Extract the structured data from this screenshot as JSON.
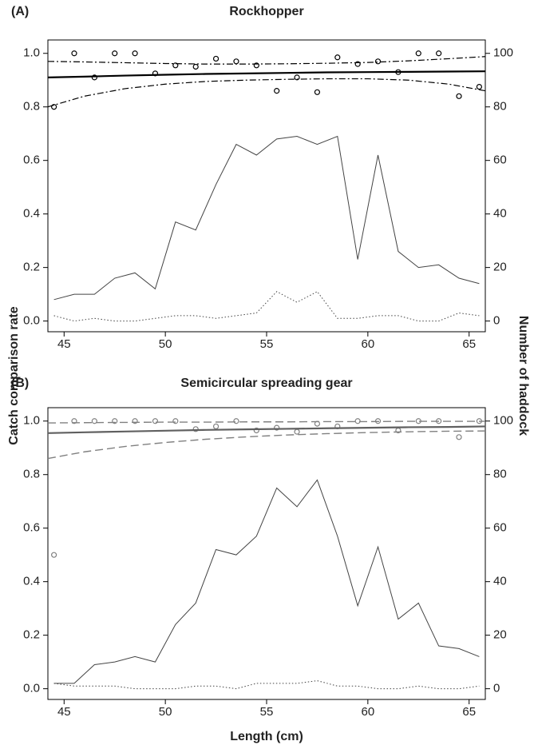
{
  "chart_data": [
    {
      "type": "line",
      "label": "(A)",
      "title": "Rockhopper",
      "y_label": "Catch comparison rate",
      "y2_label": "Number of haddock",
      "xlim": [
        44.2,
        65.8
      ],
      "xticks": [
        45,
        50,
        55,
        60,
        65
      ],
      "ylim": [
        -0.04,
        1.05
      ],
      "yticks": [
        {
          "value": 0,
          "label": "0.0"
        },
        0.2,
        0.4,
        0.6,
        0.8,
        {
          "value": 1,
          "label": "1.0"
        }
      ],
      "y2lim": [
        -4,
        105
      ],
      "y2ticks": [
        0,
        20,
        40,
        60,
        80,
        100
      ],
      "series": [
        {
          "style": "points",
          "color": "#000000",
          "x": [
            44.5,
            45.5,
            46.5,
            47.5,
            48.5,
            49.5,
            50.5,
            51.5,
            52.5,
            53.5,
            54.5,
            55.5,
            56.5,
            57.5,
            58.5,
            59.5,
            60.5,
            61.5,
            62.5,
            63.5,
            64.5,
            65.5
          ],
          "values": [
            0.8,
            1.0,
            0.91,
            1.0,
            1.0,
            0.925,
            0.955,
            0.95,
            0.98,
            0.97,
            0.955,
            0.86,
            0.91,
            0.855,
            0.985,
            0.96,
            0.97,
            0.93,
            1.0,
            1.0,
            0.84,
            0.875
          ]
        },
        {
          "style": "solid-thick",
          "color": "#000000",
          "x": [
            44.2,
            46,
            48,
            50,
            52,
            54,
            56,
            58,
            60,
            62,
            64,
            65.8
          ],
          "values": [
            0.91,
            0.913,
            0.917,
            0.92,
            0.923,
            0.925,
            0.927,
            0.929,
            0.93,
            0.931,
            0.932,
            0.933
          ]
        },
        {
          "style": "dashdot",
          "color": "#000000",
          "x": [
            44.2,
            46,
            48,
            50,
            52,
            54,
            56,
            58,
            60,
            62,
            64,
            65.8
          ],
          "values": [
            0.97,
            0.968,
            0.965,
            0.962,
            0.96,
            0.96,
            0.961,
            0.963,
            0.966,
            0.972,
            0.98,
            0.988
          ]
        },
        {
          "style": "dashdot",
          "color": "#000000",
          "x": [
            44.2,
            46,
            48,
            50,
            52,
            54,
            56,
            58,
            60,
            62,
            64,
            65.8
          ],
          "values": [
            0.8,
            0.84,
            0.868,
            0.885,
            0.895,
            0.9,
            0.903,
            0.905,
            0.905,
            0.9,
            0.885,
            0.86
          ]
        },
        {
          "style": "solid",
          "color": "#444444",
          "axis": "y2",
          "x": [
            44.5,
            45.5,
            46.5,
            47.5,
            48.5,
            49.5,
            50.5,
            51.5,
            52.5,
            53.5,
            54.5,
            55.5,
            56.5,
            57.5,
            58.5,
            59.5,
            60.5,
            61.5,
            62.5,
            63.5,
            64.5,
            65.5
          ],
          "values": [
            8,
            10,
            10,
            16,
            18,
            12,
            37,
            34,
            51,
            66,
            62,
            68,
            69,
            66,
            69,
            23,
            62,
            26,
            20,
            21,
            16,
            14
          ]
        },
        {
          "style": "dotted",
          "color": "#444444",
          "axis": "y2",
          "x": [
            44.5,
            45.5,
            46.5,
            47.5,
            48.5,
            49.5,
            50.5,
            51.5,
            52.5,
            53.5,
            54.5,
            55.5,
            56.5,
            57.5,
            58.5,
            59.5,
            60.5,
            61.5,
            62.5,
            63.5,
            64.5,
            65.5
          ],
          "values": [
            2,
            0,
            1,
            0,
            0,
            1,
            2,
            2,
            1,
            2,
            3,
            11,
            7,
            11,
            1,
            1,
            2,
            2,
            0,
            0,
            3,
            2
          ]
        }
      ]
    },
    {
      "type": "line",
      "label": "(B)",
      "title": "Semicircular spreading gear",
      "x_label": "Length (cm)",
      "xlim": [
        44.2,
        65.8
      ],
      "xticks": [
        45,
        50,
        55,
        60,
        65
      ],
      "ylim": [
        -0.04,
        1.05
      ],
      "yticks": [
        {
          "value": 0,
          "label": "0.0"
        },
        0.2,
        0.4,
        0.6,
        0.8,
        {
          "value": 1,
          "label": "1.0"
        }
      ],
      "y2lim": [
        -4,
        105
      ],
      "y2ticks": [
        0,
        20,
        40,
        60,
        80,
        100
      ],
      "series": [
        {
          "style": "points",
          "color": "#808080",
          "x": [
            44.5,
            45.5,
            46.5,
            47.5,
            48.5,
            49.5,
            50.5,
            51.5,
            52.5,
            53.5,
            54.5,
            55.5,
            56.5,
            57.5,
            58.5,
            59.5,
            60.5,
            61.5,
            62.5,
            63.5,
            64.5,
            65.5
          ],
          "values": [
            0.5,
            1.0,
            1.0,
            1.0,
            1.0,
            1.0,
            1.0,
            0.97,
            0.98,
            1.0,
            0.965,
            0.975,
            0.96,
            0.99,
            0.98,
            1.0,
            1.0,
            0.965,
            1.0,
            1.0,
            0.94,
            1.0
          ]
        },
        {
          "style": "solid-thick",
          "color": "#606060",
          "x": [
            44.2,
            46,
            48,
            50,
            52,
            54,
            56,
            58,
            60,
            62,
            64,
            65.8
          ],
          "values": [
            0.955,
            0.958,
            0.961,
            0.964,
            0.967,
            0.969,
            0.971,
            0.973,
            0.975,
            0.977,
            0.978,
            0.98
          ]
        },
        {
          "style": "dashed",
          "color": "#808080",
          "x": [
            44.2,
            46,
            48,
            50,
            52,
            54,
            56,
            58,
            60,
            62,
            64,
            65.8
          ],
          "values": [
            0.993,
            0.994,
            0.995,
            0.996,
            0.996,
            0.997,
            0.997,
            0.998,
            0.998,
            0.999,
            0.999,
            0.999
          ]
        },
        {
          "style": "dashed",
          "color": "#808080",
          "x": [
            44.2,
            46,
            48,
            50,
            52,
            54,
            56,
            58,
            60,
            62,
            64,
            65.8
          ],
          "values": [
            0.86,
            0.885,
            0.905,
            0.92,
            0.932,
            0.941,
            0.948,
            0.953,
            0.957,
            0.96,
            0.962,
            0.963
          ]
        },
        {
          "style": "solid",
          "color": "#444444",
          "axis": "y2",
          "x": [
            44.5,
            45.5,
            46.5,
            47.5,
            48.5,
            49.5,
            50.5,
            51.5,
            52.5,
            53.5,
            54.5,
            55.5,
            56.5,
            57.5,
            58.5,
            59.5,
            60.5,
            61.5,
            62.5,
            63.5,
            64.5,
            65.5
          ],
          "values": [
            2,
            2,
            9,
            10,
            12,
            10,
            24,
            32,
            52,
            50,
            57,
            75,
            68,
            78,
            57,
            31,
            53,
            26,
            32,
            16,
            15,
            12
          ]
        },
        {
          "style": "dotted",
          "color": "#444444",
          "axis": "y2",
          "x": [
            44.5,
            45.5,
            46.5,
            47.5,
            48.5,
            49.5,
            50.5,
            51.5,
            52.5,
            53.5,
            54.5,
            55.5,
            56.5,
            57.5,
            58.5,
            59.5,
            60.5,
            61.5,
            62.5,
            63.5,
            64.5,
            65.5
          ],
          "values": [
            2,
            1,
            1,
            1,
            0,
            0,
            0,
            1,
            1,
            0,
            2,
            2,
            2,
            3,
            1,
            1,
            0,
            0,
            1,
            0,
            0,
            1
          ]
        }
      ]
    }
  ]
}
